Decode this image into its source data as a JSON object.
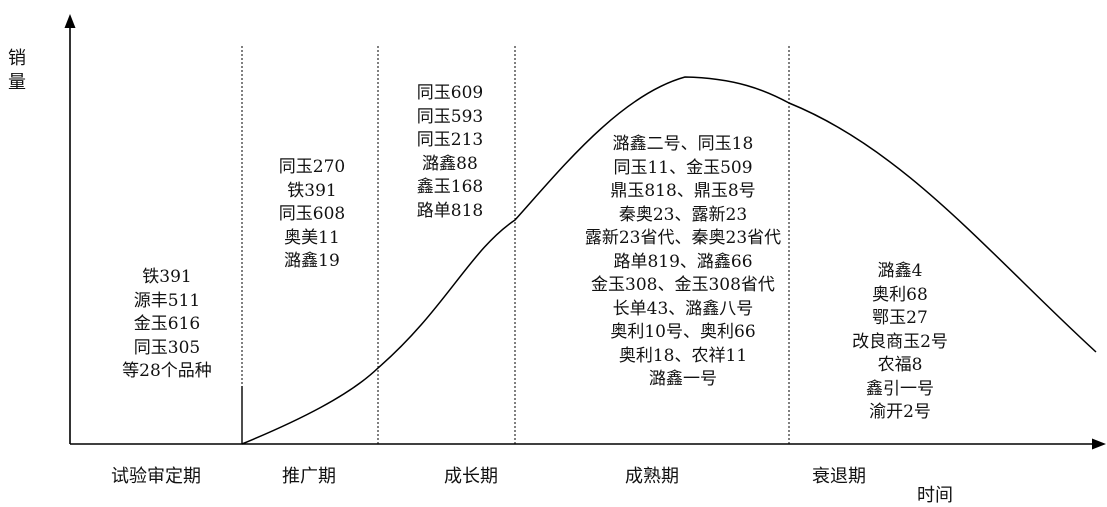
{
  "axes": {
    "y_label": "销量",
    "x_label": "时间"
  },
  "stages": [
    {
      "label": "试验审定期",
      "varieties": [
        "铁391",
        "源丰511",
        "金玉616",
        "同玉305",
        "等28个品种"
      ]
    },
    {
      "label": "推广期",
      "varieties": [
        "同玉270",
        "铁391",
        "同玉608",
        "奥美11",
        "潞鑫19"
      ]
    },
    {
      "label": "成长期",
      "varieties": [
        "同玉609",
        "同玉593",
        "同玉213",
        "潞鑫88",
        "鑫玉168",
        "路单818"
      ]
    },
    {
      "label": "成熟期",
      "varieties": [
        "潞鑫二号、同玉18",
        "同玉11、金玉509",
        "鼎玉818、鼎玉8号",
        "秦奥23、露新23",
        "露新23省代、秦奥23省代",
        "路单819、潞鑫66",
        "金玉308、金玉308省代",
        "长单43、潞鑫八号",
        "奥利10号、奥利66",
        "奥利18、农祥11",
        "潞鑫一号"
      ]
    },
    {
      "label": "衰退期",
      "varieties": [
        "潞鑫4",
        "奥利68",
        "鄂玉27",
        "改良商玉2号",
        "农福8",
        "鑫引一号",
        "渝开2号"
      ]
    }
  ]
}
